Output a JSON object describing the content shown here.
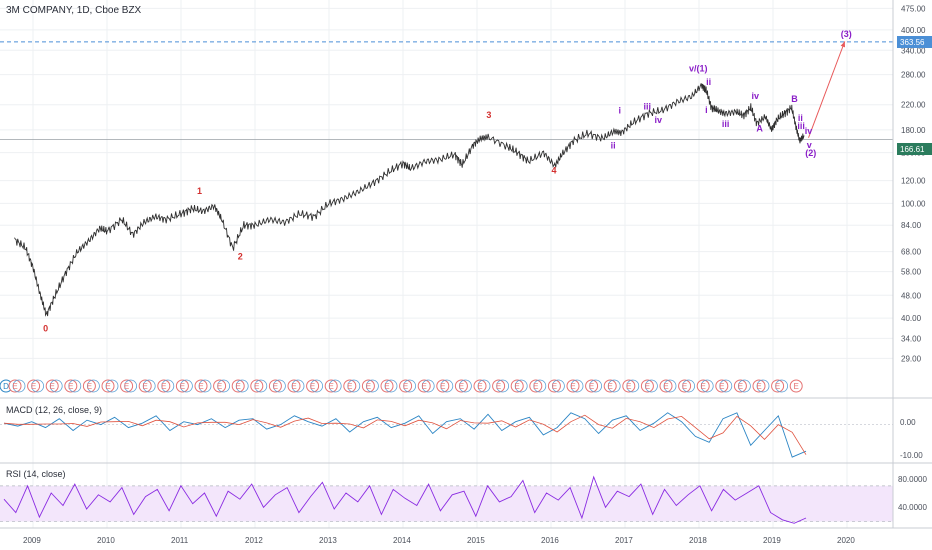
{
  "header": {
    "title": "3M COMPANY, 1D, Cboe BZX"
  },
  "colors": {
    "price_line": "#2f2f2f",
    "grid": "#eef0f3",
    "wave_red": "#d3302f",
    "wave_purple": "#8a1ec8",
    "arrow": "#e8595a",
    "dashed_blue": "#4b8fd6",
    "macd_line": "#2d86c5",
    "macd_signal": "#e0533f",
    "rsi_line": "#8a2be2",
    "rsi_band": "#f3e6fb",
    "earnings_badge": "#e57373"
  },
  "price_badges": {
    "target": "363.56",
    "current": "166.61"
  },
  "indicators": {
    "macd_title": "MACD (12, 26, close, 9)",
    "macd_ticks": [
      "0.00",
      "-10.00"
    ],
    "rsi_title": "RSI (14, close)",
    "rsi_ticks": [
      "80.0000",
      "40.0000"
    ]
  },
  "earnings_marker": "E",
  "dividend_marker": "D",
  "chart_data": {
    "type": "line",
    "title": "3M COMPANY, 1D, Cboe BZX",
    "x_ticks": [
      "2009",
      "2010",
      "2011",
      "2012",
      "2013",
      "2014",
      "2015",
      "2016",
      "2017",
      "2018",
      "2019",
      "2020"
    ],
    "y_ticks": [
      "475.00",
      "400.00",
      "340.00",
      "280.00",
      "220.00",
      "180.00",
      "150.00",
      "120.00",
      "100.00",
      "84.00",
      "68.00",
      "58.00",
      "48.00",
      "40.00",
      "34.00",
      "29.00"
    ],
    "y_scale": "log",
    "ylim": [
      26,
      500
    ],
    "series": [
      {
        "x": [
          2008.75,
          2008.9,
          2009.0,
          2009.1,
          2009.18,
          2009.3,
          2009.45,
          2009.6,
          2009.75,
          2009.9,
          2010.0,
          2010.2,
          2010.35,
          2010.5,
          2010.65,
          2010.8,
          2011.0,
          2011.15,
          2011.3,
          2011.45,
          2011.55,
          2011.7,
          2011.85,
          2012.0,
          2012.2,
          2012.4,
          2012.6,
          2012.8,
          2013.0,
          2013.2,
          2013.4,
          2013.6,
          2013.8,
          2014.0,
          2014.1,
          2014.3,
          2014.5,
          2014.7,
          2014.8,
          2014.95,
          2015.05,
          2015.15,
          2015.4,
          2015.55,
          2015.7,
          2015.9,
          2016.05,
          2016.15,
          2016.3,
          2016.5,
          2016.7,
          2016.85,
          2016.95,
          2017.1,
          2017.3,
          2017.5,
          2017.7,
          2017.9,
          2018.04,
          2018.1,
          2018.17,
          2018.25,
          2018.35,
          2018.5,
          2018.6,
          2018.7,
          2018.78,
          2018.9,
          2018.98,
          2019.05,
          2019.15,
          2019.25,
          2019.31,
          2019.36,
          2019.42
        ],
        "y": [
          75,
          70,
          60,
          48,
          41,
          48,
          58,
          68,
          74,
          82,
          80,
          88,
          78,
          86,
          90,
          88,
          92,
          96,
          94,
          98,
          88,
          70,
          84,
          84,
          88,
          86,
          92,
          90,
          100,
          104,
          110,
          118,
          128,
          138,
          132,
          140,
          142,
          148,
          136,
          160,
          168,
          170,
          158,
          150,
          140,
          150,
          135,
          148,
          165,
          175,
          168,
          178,
          176,
          190,
          205,
          210,
          225,
          235,
          258,
          245,
          215,
          210,
          205,
          208,
          202,
          215,
          190,
          200,
          180,
          195,
          205,
          215,
          185,
          165,
          172
        ]
      }
    ],
    "wave_labels": [
      {
        "text": "0",
        "x": 2009.17,
        "y": 36,
        "color": "red"
      },
      {
        "text": "1",
        "x": 2011.25,
        "y": 108,
        "color": "red"
      },
      {
        "text": "2",
        "x": 2011.8,
        "y": 64,
        "color": "red"
      },
      {
        "text": "3",
        "x": 2015.16,
        "y": 198,
        "color": "red"
      },
      {
        "text": "4",
        "x": 2016.04,
        "y": 127,
        "color": "red"
      },
      {
        "text": "i",
        "x": 2016.93,
        "y": 205,
        "color": "purple"
      },
      {
        "text": "ii",
        "x": 2016.84,
        "y": 155,
        "color": "purple"
      },
      {
        "text": "iii",
        "x": 2017.3,
        "y": 212,
        "color": "purple"
      },
      {
        "text": "iv",
        "x": 2017.45,
        "y": 190,
        "color": "purple"
      },
      {
        "text": "v/(1)",
        "x": 2017.99,
        "y": 287,
        "color": "purple"
      },
      {
        "text": "ii",
        "x": 2018.13,
        "y": 258,
        "color": "purple"
      },
      {
        "text": "i",
        "x": 2018.1,
        "y": 206,
        "color": "purple"
      },
      {
        "text": "iii",
        "x": 2018.36,
        "y": 184,
        "color": "purple"
      },
      {
        "text": "iv",
        "x": 2018.76,
        "y": 230,
        "color": "purple"
      },
      {
        "text": "A",
        "x": 2018.82,
        "y": 178,
        "color": "purple"
      },
      {
        "text": "B",
        "x": 2019.29,
        "y": 225,
        "color": "purple"
      },
      {
        "text": "ii",
        "x": 2019.37,
        "y": 193,
        "color": "purple"
      },
      {
        "text": "iii",
        "x": 2019.38,
        "y": 181,
        "color": "purple"
      },
      {
        "text": "iv",
        "x": 2019.48,
        "y": 174,
        "color": "purple"
      },
      {
        "text": "v",
        "x": 2019.49,
        "y": 156,
        "color": "purple"
      },
      {
        "text": "(2)",
        "x": 2019.51,
        "y": 146,
        "color": "purple"
      },
      {
        "text": "(3)",
        "x": 2019.99,
        "y": 378,
        "color": "purple"
      }
    ],
    "projection": {
      "from": [
        2019.48,
        169
      ],
      "to": [
        2019.97,
        365
      ]
    },
    "horizontal_lines": [
      363.56,
      166.61
    ],
    "macd": {
      "ylim": [
        -12,
        7
      ],
      "values": [
        0.5,
        -0.5,
        1,
        -1,
        2,
        -2,
        1.5,
        0,
        2.5,
        -1,
        0.5,
        3,
        -2,
        1,
        0,
        2,
        -1,
        1.5,
        2,
        -1.5,
        0,
        3,
        1,
        -0.5,
        2,
        -2.5,
        1,
        2.5,
        -1,
        0.5,
        3,
        -3,
        1,
        2,
        -1.5,
        3.5,
        -2,
        1,
        2.5,
        -3.5,
        -1,
        4,
        2,
        -3,
        1.5,
        3,
        -2,
        0.5,
        4,
        1,
        -4,
        -6,
        2,
        4,
        -7,
        -2,
        3,
        -11,
        -9
      ]
    },
    "rsi": {
      "ylim": [
        25,
        90
      ],
      "band": [
        30,
        70
      ],
      "values": [
        55,
        40,
        70,
        35,
        62,
        48,
        72,
        44,
        60,
        52,
        68,
        38,
        58,
        66,
        42,
        70,
        50,
        62,
        36,
        64,
        55,
        72,
        46,
        60,
        68,
        40,
        58,
        74,
        44,
        62,
        52,
        70,
        38,
        66,
        56,
        48,
        72,
        42,
        60,
        64,
        36,
        70,
        52,
        58,
        76,
        40,
        62,
        54,
        68,
        34,
        80,
        46,
        64,
        58,
        72,
        38,
        66,
        48,
        60,
        70,
        42,
        66,
        54,
        62,
        70,
        40,
        32,
        28,
        34
      ]
    }
  }
}
